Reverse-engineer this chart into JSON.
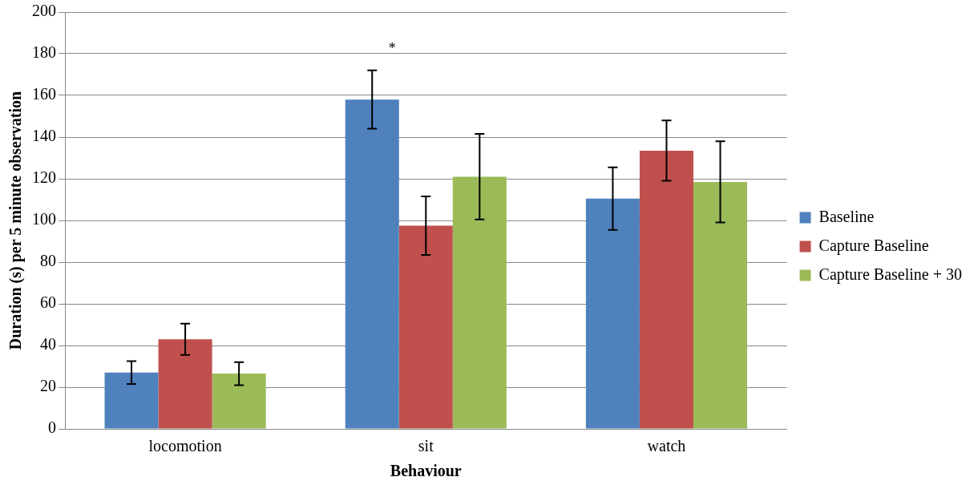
{
  "chart_data": {
    "type": "bar",
    "xlabel": "Behaviour",
    "ylabel": "Duration (s) per 5 minute observation",
    "categories": [
      "locomotion",
      "sit",
      "watch"
    ],
    "series": [
      {
        "name": "Baseline",
        "color": "#4f81bd",
        "values": [
          27,
          158,
          110.5
        ],
        "errors": [
          5.5,
          14,
          15
        ]
      },
      {
        "name": "Capture Baseline",
        "color": "#c0504d",
        "values": [
          43,
          97.5,
          133.5
        ],
        "errors": [
          7.5,
          14,
          14.5
        ]
      },
      {
        "name": "Capture Baseline + 30",
        "color": "#9bbb59",
        "values": [
          26.5,
          121,
          118.5
        ],
        "errors": [
          5.5,
          20.5,
          19.5
        ]
      }
    ],
    "ylim": [
      0,
      200
    ],
    "yticks": [
      0,
      20,
      40,
      60,
      80,
      100,
      120,
      140,
      160,
      180,
      200
    ],
    "grid": "y",
    "legend": "right",
    "annotations": [
      "*"
    ]
  }
}
